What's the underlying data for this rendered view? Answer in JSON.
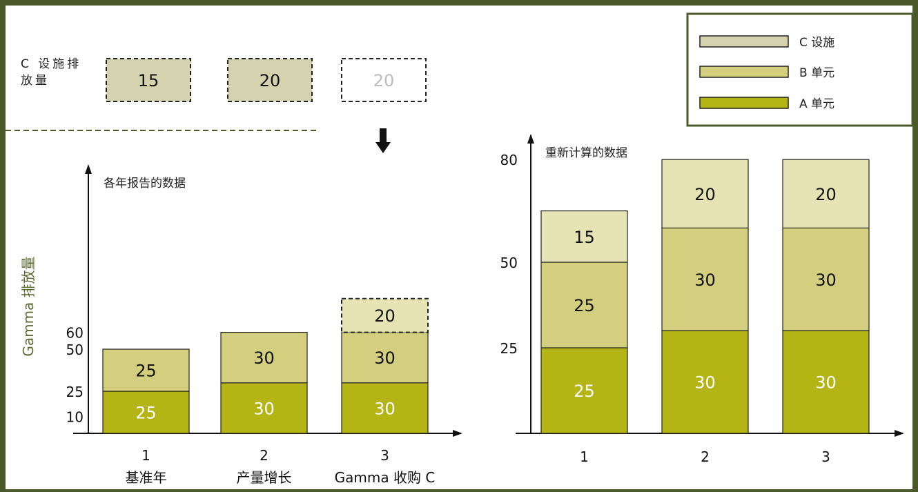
{
  "colors": {
    "border": "#4a5a2a",
    "unit_a": "#b5b415",
    "unit_b": "#d3cf7f",
    "facility_c": "#e6e4b4",
    "facility_c_box": "#d5d2b0",
    "axis_title": "#5a6a30",
    "faded_text": "#bbbbbb"
  },
  "facility_c_row": {
    "label": "C 设施排放量",
    "boxes": [
      {
        "value": "15",
        "faded": false
      },
      {
        "value": "20",
        "faded": false
      },
      {
        "value": "20",
        "faded": true
      }
    ]
  },
  "legend": {
    "position": "top-right",
    "items": [
      {
        "label": "C 设施",
        "color_key": "facility_c_box"
      },
      {
        "label": "B 单元",
        "color_key": "unit_b"
      },
      {
        "label": "A 单元",
        "color_key": "unit_a"
      }
    ]
  },
  "chart_data": [
    {
      "type": "bar",
      "stacked": true,
      "title": "各年报告的数据",
      "ylabel": "Gamma 排放量",
      "xlabel": "",
      "ylim": [
        0,
        80
      ],
      "yticks": [
        "10",
        "25",
        "50",
        "60"
      ],
      "ytick_values": [
        10,
        25,
        50,
        60
      ],
      "categories": [
        "1",
        "2",
        "3"
      ],
      "category_sublabels": [
        "基准年",
        "产量增长",
        "Gamma 收购 C"
      ],
      "series": [
        {
          "name": "A 单元",
          "values": [
            25,
            30,
            30
          ],
          "color_key": "unit_a"
        },
        {
          "name": "B 单元",
          "values": [
            25,
            30,
            30
          ],
          "color_key": "unit_b"
        },
        {
          "name": "C 设施",
          "values": [
            0,
            0,
            20
          ],
          "color_key": "facility_c",
          "dashed": [
            false,
            false,
            true
          ]
        }
      ]
    },
    {
      "type": "bar",
      "stacked": true,
      "title": "重新计算的数据",
      "xlabel": "",
      "ylabel": "",
      "ylim": [
        0,
        80
      ],
      "yticks": [
        "25",
        "50",
        "80"
      ],
      "ytick_values": [
        25,
        50,
        80
      ],
      "categories": [
        "1",
        "2",
        "3"
      ],
      "series": [
        {
          "name": "A 单元",
          "values": [
            25,
            30,
            30
          ],
          "color_key": "unit_a"
        },
        {
          "name": "B 单元",
          "values": [
            25,
            30,
            30
          ],
          "color_key": "unit_b"
        },
        {
          "name": "C 设施",
          "values": [
            15,
            20,
            20
          ],
          "color_key": "facility_c"
        }
      ]
    }
  ]
}
